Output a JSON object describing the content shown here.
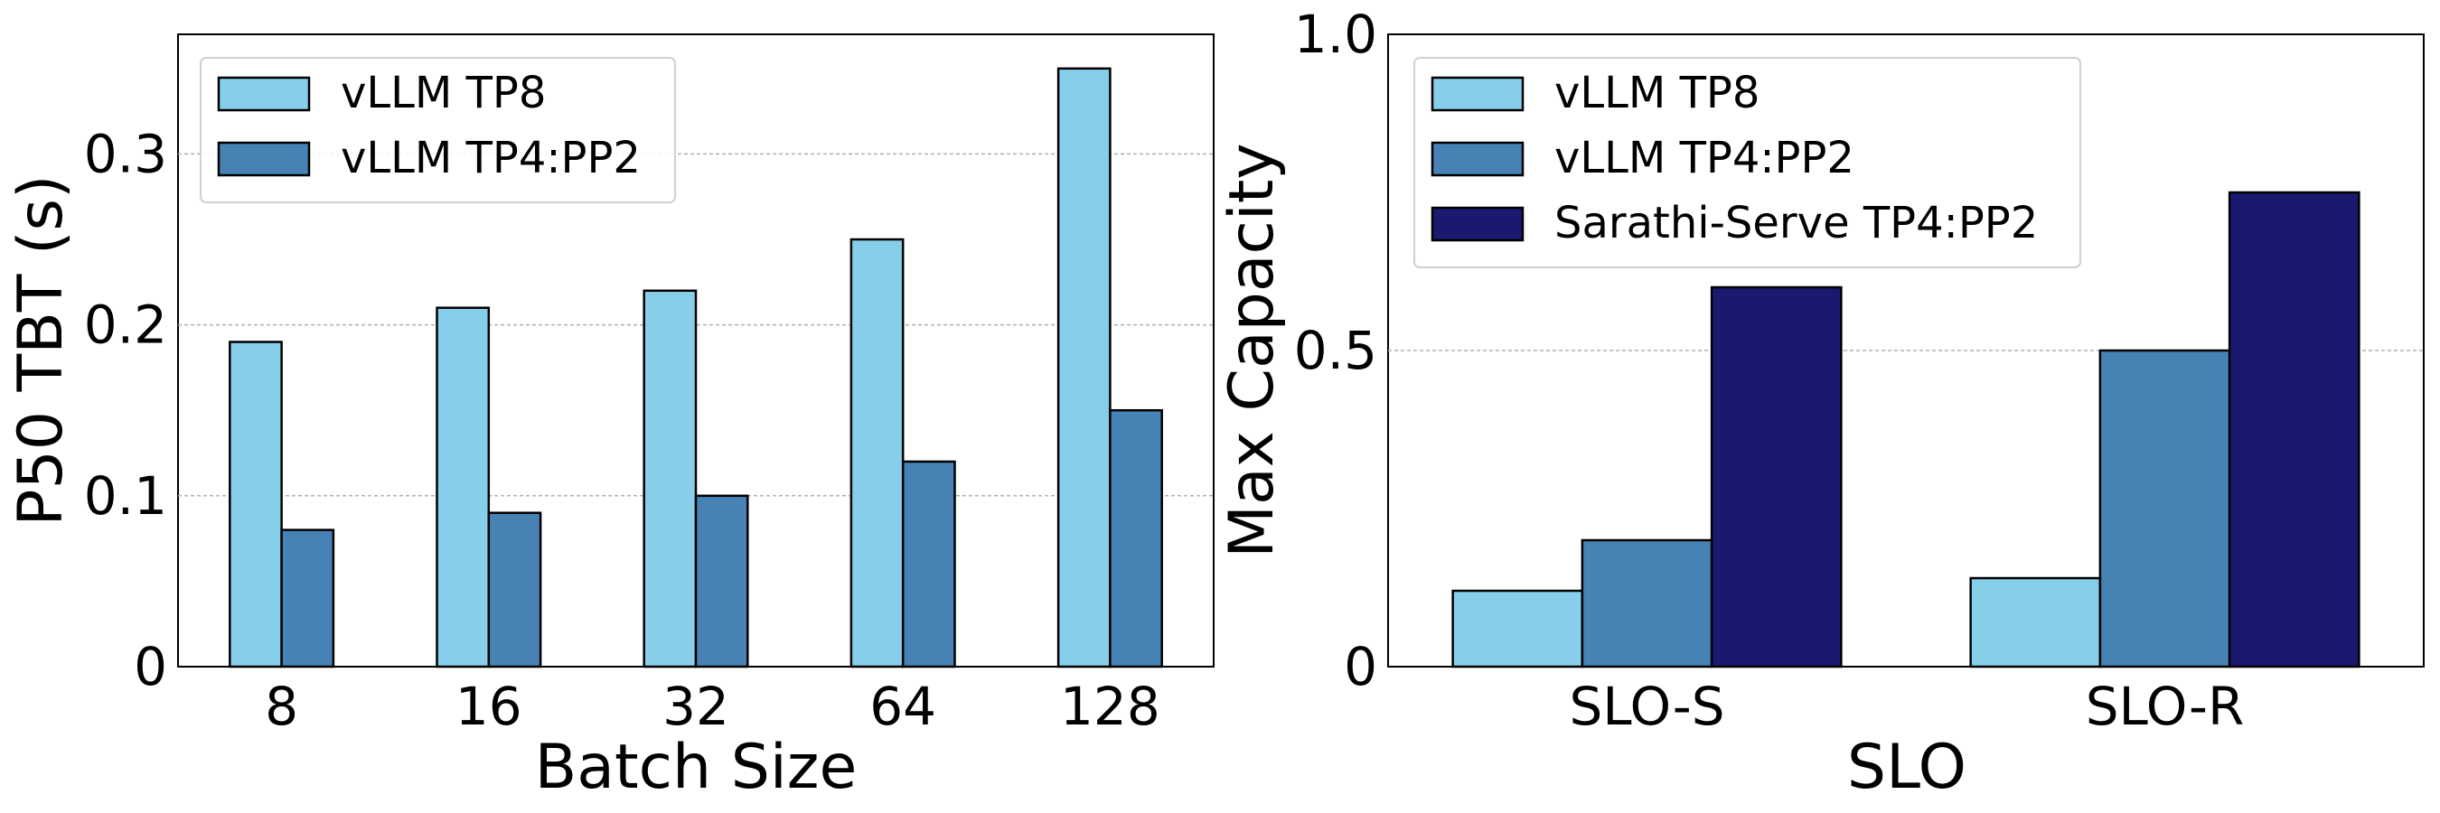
{
  "chart_data": [
    {
      "type": "bar",
      "title": "",
      "xlabel": "Batch Size",
      "ylabel": "P50 TBT (s)",
      "categories": [
        "8",
        "16",
        "32",
        "64",
        "128"
      ],
      "ylim": [
        0,
        0.37
      ],
      "yticks": [
        0,
        0.1,
        0.2,
        0.3
      ],
      "ytick_labels": [
        "0",
        "0.1",
        "0.2",
        "0.3"
      ],
      "grid": "horizontal dashed",
      "legend_position": "top-left",
      "series": [
        {
          "name": "vLLM TP8",
          "color": "#87ceeb",
          "values": [
            0.19,
            0.21,
            0.22,
            0.25,
            0.35
          ]
        },
        {
          "name": "vLLM TP4:PP2",
          "color": "#4682b4",
          "values": [
            0.08,
            0.09,
            0.1,
            0.12,
            0.15
          ]
        }
      ]
    },
    {
      "type": "bar",
      "title": "",
      "xlabel": "SLO",
      "ylabel": "Max Capacity",
      "categories": [
        "SLO-S",
        "SLO-R"
      ],
      "ylim": [
        0,
        1.0
      ],
      "yticks": [
        0,
        0.5,
        1.0
      ],
      "ytick_labels": [
        "0",
        "0.5",
        "1.0"
      ],
      "grid": "horizontal dashed",
      "legend_position": "top-left",
      "series": [
        {
          "name": "vLLM TP8",
          "color": "#87ceeb",
          "values": [
            0.12,
            0.14
          ]
        },
        {
          "name": "vLLM TP4:PP2",
          "color": "#4682b4",
          "values": [
            0.2,
            0.5
          ]
        },
        {
          "name": "Sarathi-Serve TP4:PP2",
          "color": "#191970",
          "values": [
            0.6,
            0.75
          ]
        }
      ]
    }
  ]
}
